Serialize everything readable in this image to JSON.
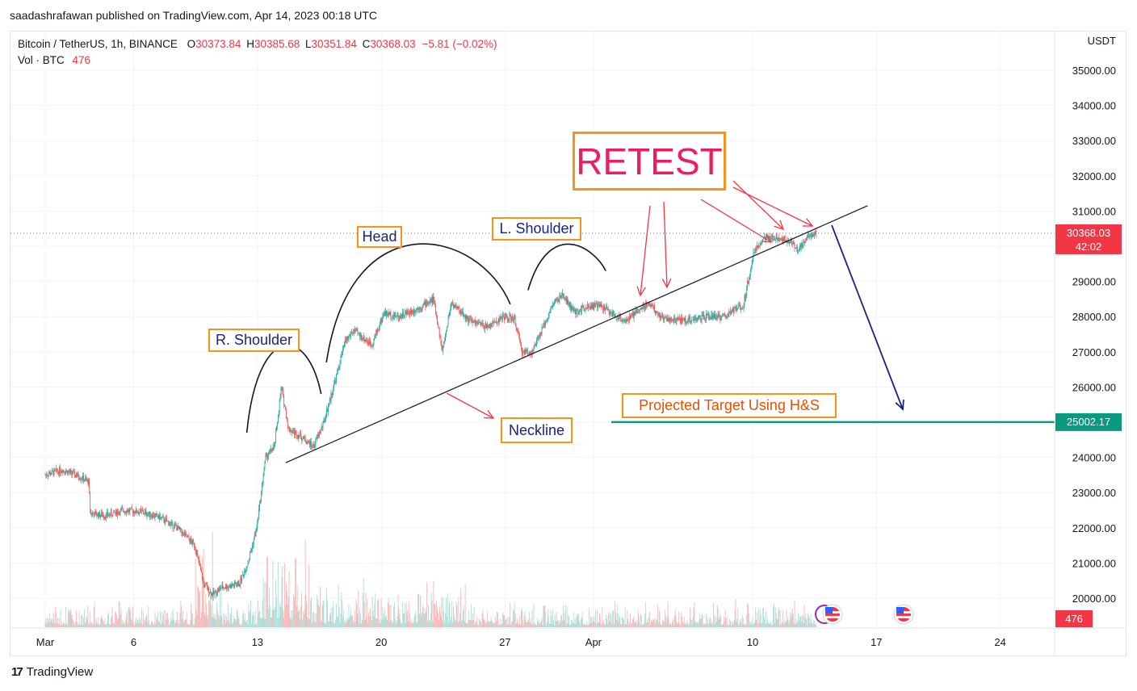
{
  "header": {
    "publisher_line": "saadashrafawan published on TradingView.com, Apr 14, 2023 00:18 UTC"
  },
  "legend": {
    "symbol": "Bitcoin / TetherUS, 1h, BINANCE",
    "open_label": "O",
    "open": "30373.84",
    "high_label": "H",
    "high": "30385.68",
    "low_label": "L",
    "low": "30351.84",
    "close_label": "C",
    "close": "30368.03",
    "change": "−5.81 (−0.02%)",
    "vol_label": "Vol · BTC",
    "vol_value": "476"
  },
  "footer": {
    "brand": "TradingView"
  },
  "colors": {
    "up": "#26a69a",
    "down": "#ef5350",
    "annotation_red": "#f23645",
    "box_border": "#f7931a",
    "retest_text": "#e91e63",
    "navy": "#1a237e",
    "target_line": "#089981",
    "price_tag": "#f23645"
  },
  "annotations": {
    "retest": "RETEST",
    "head": "Head",
    "l_shoulder": "L. Shoulder",
    "r_shoulder": "R. Shoulder",
    "neckline": "Neckline",
    "target": "Projected Target Using H&S"
  },
  "chart_data": {
    "type": "candlestick",
    "symbol": "Bitcoin / TetherUS",
    "interval": "1h",
    "exchange": "BINANCE",
    "currency": "USDT",
    "y_ticks": [
      20000,
      21000,
      22000,
      23000,
      24000,
      25000,
      26000,
      27000,
      28000,
      29000,
      30000,
      31000,
      32000,
      33000,
      34000,
      35000
    ],
    "y_tick_labels": [
      "20000.00",
      "21000.00",
      "22000.00",
      "23000.00",
      "24000.00",
      "25000.00",
      "26000.00",
      "27000.00",
      "28000.00",
      "29000.00",
      "30000.00",
      "31000.00",
      "32000.00",
      "33000.00",
      "34000.00",
      "35000.00"
    ],
    "hidden_tick_values": [
      25000,
      30000
    ],
    "x_tick_labels": [
      "Mar",
      "6",
      "13",
      "20",
      "27",
      "Apr",
      "10",
      "17",
      "24"
    ],
    "x_tick_days": [
      0,
      5,
      12,
      19,
      26,
      31,
      40,
      47,
      54
    ],
    "x_day_origin": "Mar 1, 2023",
    "last_price": "30368.03",
    "countdown": "42:02",
    "target_price": "25002.17",
    "volume_last": "476",
    "price_path": [
      {
        "day": 0.0,
        "price": 23500
      },
      {
        "day": 1.0,
        "price": 23650
      },
      {
        "day": 2.0,
        "price": 23450
      },
      {
        "day": 2.5,
        "price": 23300
      },
      {
        "day": 2.6,
        "price": 22400
      },
      {
        "day": 3.5,
        "price": 22350
      },
      {
        "day": 4.5,
        "price": 22500
      },
      {
        "day": 5.5,
        "price": 22450
      },
      {
        "day": 6.5,
        "price": 22300
      },
      {
        "day": 7.5,
        "price": 22000
      },
      {
        "day": 8.5,
        "price": 21500
      },
      {
        "day": 9.0,
        "price": 20400
      },
      {
        "day": 9.5,
        "price": 20100
      },
      {
        "day": 10.0,
        "price": 20300
      },
      {
        "day": 11.0,
        "price": 20400
      },
      {
        "day": 11.5,
        "price": 21000
      },
      {
        "day": 12.0,
        "price": 22000
      },
      {
        "day": 12.5,
        "price": 24000
      },
      {
        "day": 13.0,
        "price": 24300
      },
      {
        "day": 13.4,
        "price": 26000
      },
      {
        "day": 13.8,
        "price": 24800
      },
      {
        "day": 14.5,
        "price": 24600
      },
      {
        "day": 15.2,
        "price": 24300
      },
      {
        "day": 15.8,
        "price": 25000
      },
      {
        "day": 16.5,
        "price": 26300
      },
      {
        "day": 17.0,
        "price": 27300
      },
      {
        "day": 17.5,
        "price": 27600
      },
      {
        "day": 18.5,
        "price": 27200
      },
      {
        "day": 19.2,
        "price": 28100
      },
      {
        "day": 20.0,
        "price": 28000
      },
      {
        "day": 21.0,
        "price": 28200
      },
      {
        "day": 22.0,
        "price": 28500
      },
      {
        "day": 22.5,
        "price": 27000
      },
      {
        "day": 23.0,
        "price": 28400
      },
      {
        "day": 24.0,
        "price": 27900
      },
      {
        "day": 25.0,
        "price": 27700
      },
      {
        "day": 26.0,
        "price": 28000
      },
      {
        "day": 26.6,
        "price": 27900
      },
      {
        "day": 27.0,
        "price": 27000
      },
      {
        "day": 27.6,
        "price": 27000
      },
      {
        "day": 28.2,
        "price": 27700
      },
      {
        "day": 28.8,
        "price": 28400
      },
      {
        "day": 29.3,
        "price": 28600
      },
      {
        "day": 30.0,
        "price": 28100
      },
      {
        "day": 30.6,
        "price": 28300
      },
      {
        "day": 31.5,
        "price": 28300
      },
      {
        "day": 32.3,
        "price": 28000
      },
      {
        "day": 33.0,
        "price": 27900
      },
      {
        "day": 33.6,
        "price": 28200
      },
      {
        "day": 34.2,
        "price": 28400
      },
      {
        "day": 34.8,
        "price": 28000
      },
      {
        "day": 35.5,
        "price": 27900
      },
      {
        "day": 36.5,
        "price": 27900
      },
      {
        "day": 37.5,
        "price": 28000
      },
      {
        "day": 38.5,
        "price": 28000
      },
      {
        "day": 39.0,
        "price": 28200
      },
      {
        "day": 39.5,
        "price": 28300
      },
      {
        "day": 40.1,
        "price": 29800
      },
      {
        "day": 40.6,
        "price": 30200
      },
      {
        "day": 41.5,
        "price": 30250
      },
      {
        "day": 42.2,
        "price": 30150
      },
      {
        "day": 42.6,
        "price": 29900
      },
      {
        "day": 43.2,
        "price": 30300
      },
      {
        "day": 43.6,
        "price": 30370
      }
    ]
  }
}
